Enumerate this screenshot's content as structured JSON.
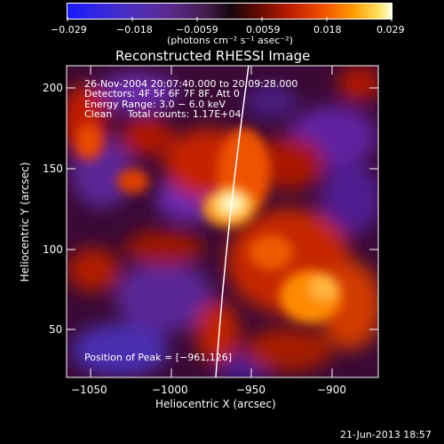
{
  "colorbar": {
    "ticks": [
      "−0.029",
      "−0.018",
      "−0.0059",
      "0.0059",
      "0.018",
      "0.029"
    ],
    "units": "(photons cm⁻² s⁻¹ asec⁻²)"
  },
  "plot": {
    "title": "Reconstructed RHESSI Image",
    "info": {
      "time": "26-Nov-2004 20:07:40.000 to 20:09:28.000",
      "detectors": "Detectors: 4F 5F 6F 7F 8F, Att 0",
      "energy": "Energy Range: 3.0 − 6.0 keV",
      "method": "Clean     Total counts: 1.17E+04",
      "peak": "Position of Peak = [−961,126]"
    },
    "xlabel": "Heliocentric X (arcsec)",
    "ylabel": "Heliocentric Y (arcsec)",
    "xticks": [
      "−1050",
      "−1000",
      "−950",
      "−900"
    ],
    "yticks": [
      "50",
      "100",
      "150",
      "200"
    ]
  },
  "chart_data": {
    "type": "heatmap",
    "title": "Reconstructed RHESSI Image",
    "xlabel": "Heliocentric X (arcsec)",
    "ylabel": "Heliocentric Y (arcsec)",
    "xticks": [
      -1050,
      -1000,
      -950,
      -900
    ],
    "yticks": [
      50,
      100,
      150,
      200
    ],
    "xlim": [
      -1065,
      -875
    ],
    "ylim": [
      20,
      212
    ],
    "colorbar": {
      "min": -0.029,
      "max": 0.029,
      "ticks": [
        -0.029,
        -0.018,
        -0.0059,
        0.0059,
        0.018,
        0.029
      ]
    },
    "peak": {
      "x": -961,
      "y": 126
    }
  },
  "footer": {
    "timestamp": "21-Jun-2013 18:57"
  }
}
